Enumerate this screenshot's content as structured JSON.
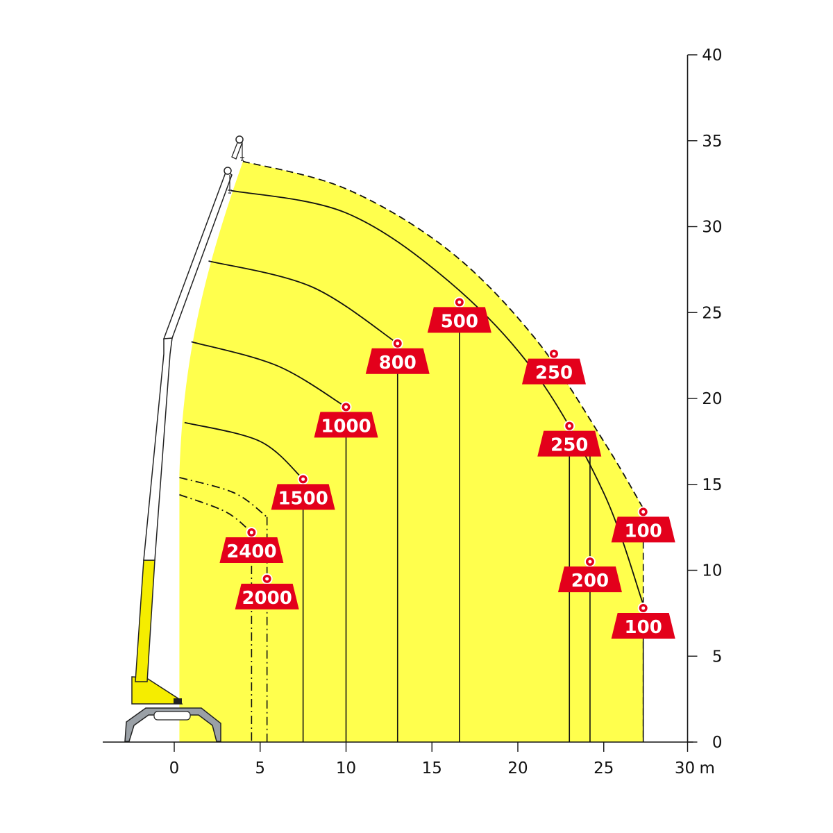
{
  "chart_data": {
    "type": "line",
    "title": "",
    "xlabel": "m",
    "ylabel": "",
    "xlim": [
      -4.5,
      30
    ],
    "ylim": [
      0,
      40
    ],
    "x_ticks": [
      "0",
      "5",
      "10",
      "15",
      "20",
      "25",
      "30"
    ],
    "y_ticks": [
      "0",
      "5",
      "10",
      "15",
      "20",
      "25",
      "30",
      "35",
      "40"
    ],
    "colors": {
      "envelope": "#ffff4d",
      "weight": "#e3001b",
      "line": "#111111",
      "crane_yellow": "#f5ed00"
    },
    "curves": [
      {
        "style": "dashed",
        "points": [
          [
            4,
            33.8
          ],
          [
            10,
            32.2
          ],
          [
            16,
            28.6
          ],
          [
            21,
            23.5
          ],
          [
            25,
            17.5
          ],
          [
            27.3,
            13.6
          ]
        ]
      },
      {
        "style": "solid",
        "points": [
          [
            3.3,
            32.1
          ],
          [
            10,
            30.8
          ],
          [
            16,
            26.8
          ],
          [
            21,
            21.5
          ],
          [
            25,
            14.5
          ],
          [
            27.3,
            8
          ]
        ]
      },
      {
        "style": "solid",
        "points": [
          [
            2.0,
            28.0
          ],
          [
            8,
            26.5
          ],
          [
            13,
            23.2
          ]
        ]
      },
      {
        "style": "solid",
        "points": [
          [
            1.0,
            23.3
          ],
          [
            6,
            21.9
          ],
          [
            10,
            19.5
          ]
        ]
      },
      {
        "style": "solid",
        "points": [
          [
            0.6,
            18.6
          ],
          [
            5,
            17.5
          ],
          [
            7.5,
            15.3
          ]
        ]
      },
      {
        "style": "dashdot",
        "points": [
          [
            0.3,
            15.4
          ],
          [
            3.5,
            14.5
          ],
          [
            5.4,
            13.1
          ]
        ]
      },
      {
        "style": "dashdot",
        "points": [
          [
            0.3,
            14.4
          ],
          [
            3,
            13.4
          ],
          [
            4.5,
            12.2
          ]
        ]
      }
    ],
    "drops": [
      {
        "x": 4.5,
        "y_top": 12.2,
        "style": "dashdot"
      },
      {
        "x": 5.4,
        "y_top": 13.1,
        "style": "dashdot"
      },
      {
        "x": 7.5,
        "y_top": 15.3,
        "style": "solid"
      },
      {
        "x": 10,
        "y_top": 19.5,
        "style": "solid"
      },
      {
        "x": 13,
        "y_top": 23.2,
        "style": "solid"
      },
      {
        "x": 16.6,
        "y_top": 25.6,
        "style": "solid"
      },
      {
        "x": 23,
        "y_top": 18.4,
        "style": "solid"
      },
      {
        "x": 24.2,
        "y_top": 16.7,
        "style": "solid"
      },
      {
        "x": 27.3,
        "y_top": 13.6,
        "style": "dashed"
      },
      {
        "x": 27.3,
        "y_top": 8,
        "style": "solid"
      }
    ],
    "loads": [
      {
        "label": "2400",
        "x": 4.5,
        "y": 12.2
      },
      {
        "label": "2000",
        "x": 5.4,
        "y": 9.5
      },
      {
        "label": "1500",
        "x": 7.5,
        "y": 15.3
      },
      {
        "label": "1000",
        "x": 10,
        "y": 19.5
      },
      {
        "label": "800",
        "x": 13,
        "y": 23.2
      },
      {
        "label": "500",
        "x": 16.6,
        "y": 25.6
      },
      {
        "label": "250",
        "x": 22.1,
        "y": 22.6
      },
      {
        "label": "250",
        "x": 23,
        "y": 18.4
      },
      {
        "label": "200",
        "x": 24.2,
        "y": 10.5
      },
      {
        "label": "100",
        "x": 27.3,
        "y": 13.4
      },
      {
        "label": "100",
        "x": 27.3,
        "y": 7.8
      }
    ]
  }
}
